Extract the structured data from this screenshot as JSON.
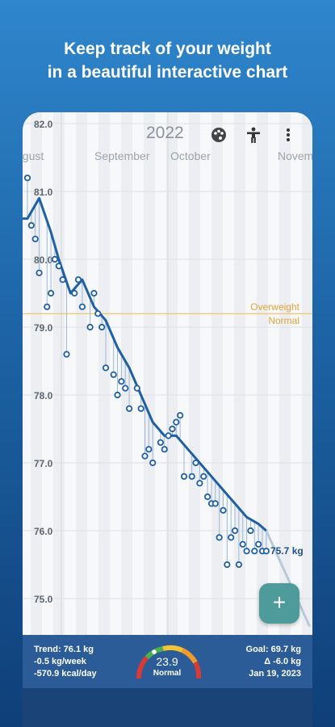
{
  "promo": {
    "line1": "Keep track of your weight",
    "line2": "in a beautiful interactive chart"
  },
  "header": {
    "year": "2022",
    "icons": [
      "palette-icon",
      "accessibility-person-icon",
      "more-vertical-icon"
    ]
  },
  "chart_data": {
    "type": "line",
    "y_ticks": [
      "82.0",
      "81.0",
      "80.0",
      "79.0",
      "78.0",
      "77.0",
      "76.0",
      "75.0"
    ],
    "ylim": [
      74.6,
      82.0
    ],
    "x_month_labels": [
      "ugust",
      "September",
      "October",
      "Novem"
    ],
    "threshold": {
      "value": 79.2,
      "label_above": "Overweight",
      "label_below": "Normal"
    },
    "end_label": "75.7 kg",
    "series": [
      {
        "name": "Measurements",
        "x": [
          0,
          1,
          2,
          3,
          5,
          6,
          7,
          8,
          9,
          10,
          12,
          13,
          14,
          16,
          17,
          18,
          19,
          20,
          22,
          23,
          24,
          25,
          26,
          28,
          29,
          30,
          31,
          32,
          34,
          35,
          36,
          37,
          38,
          39,
          40,
          42,
          43,
          44,
          45,
          46,
          47,
          48,
          49,
          50,
          51,
          52,
          53,
          54,
          55,
          56,
          57,
          58,
          59,
          60,
          61
        ],
        "values": [
          81.2,
          80.5,
          80.3,
          79.8,
          79.3,
          79.5,
          80.0,
          79.9,
          79.7,
          78.6,
          79.5,
          79.7,
          79.3,
          79.0,
          79.5,
          79.2,
          79.0,
          78.4,
          78.3,
          78.0,
          78.2,
          78.1,
          77.8,
          78.1,
          77.8,
          77.1,
          77.2,
          77.0,
          77.3,
          77.2,
          77.4,
          77.5,
          77.6,
          77.7,
          76.8,
          76.8,
          77.0,
          76.7,
          76.8,
          76.5,
          76.4,
          76.4,
          75.9,
          76.3,
          75.5,
          75.9,
          76.0,
          75.5,
          75.8,
          75.7,
          76.0,
          75.7,
          75.8,
          75.7,
          75.7
        ],
        "color": "#1f5fa3"
      },
      {
        "name": "Trend",
        "x": [
          0,
          3,
          6,
          8,
          11,
          14,
          17,
          20,
          23,
          26,
          29,
          32,
          35,
          38,
          41,
          44,
          47,
          50,
          53,
          56,
          59,
          61
        ],
        "values": [
          80.6,
          80.9,
          80.4,
          80.0,
          79.5,
          79.7,
          79.3,
          79.1,
          78.7,
          78.4,
          78.0,
          77.6,
          77.4,
          77.4,
          77.2,
          77.0,
          76.8,
          76.6,
          76.4,
          76.2,
          76.1,
          76.0
        ],
        "color": "#1f5fa3"
      },
      {
        "name": "Forecast",
        "x": [
          61,
          72
        ],
        "values": [
          76.0,
          74.6
        ],
        "color": "#b8c9d9"
      }
    ],
    "grid": true
  },
  "fab": {
    "label": "+"
  },
  "stats": {
    "trend": "Trend: 76.1 kg",
    "rate_week": "-0.5 kg/week",
    "kcal_day": "-570.9 kcal/day",
    "goal": "Goal: 69.7 kg",
    "delta": "Δ -6.0 kg",
    "goal_date": "Jan 19, 2023",
    "bmi_value": "23.9",
    "bmi_category": "Normal"
  },
  "colors": {
    "accent": "#2c5c97",
    "trend": "#1f5fa3",
    "threshold": "#f0b84a",
    "fab": "#4e9b9b"
  }
}
